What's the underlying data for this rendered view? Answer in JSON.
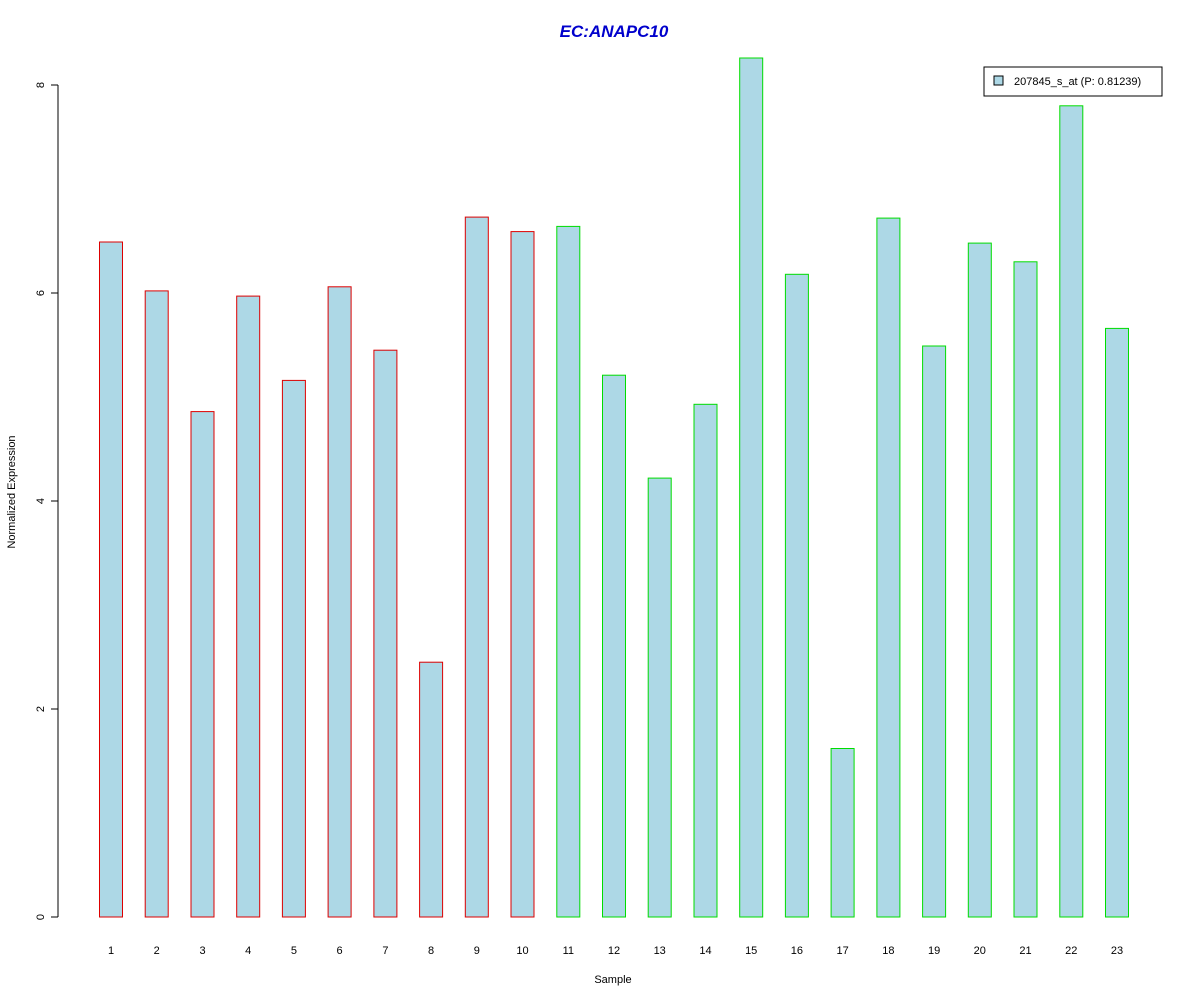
{
  "chart_data": {
    "type": "bar",
    "title": "EC:ANAPC10",
    "xlabel": "Sample",
    "ylabel": "Normalized Expression",
    "categories": [
      "1",
      "2",
      "3",
      "4",
      "5",
      "6",
      "7",
      "8",
      "9",
      "10",
      "11",
      "12",
      "13",
      "14",
      "15",
      "16",
      "17",
      "18",
      "19",
      "20",
      "21",
      "22",
      "23"
    ],
    "series": [
      {
        "name": "207845_s_at (P: 0.81239)",
        "values": [
          6.49,
          6.02,
          4.86,
          5.97,
          5.16,
          6.06,
          5.45,
          2.45,
          6.73,
          6.59,
          6.64,
          5.21,
          4.22,
          4.93,
          8.26,
          6.18,
          1.62,
          6.72,
          5.49,
          6.48,
          6.3,
          7.8,
          5.66
        ],
        "group_colors": [
          "#dd0000",
          "#dd0000",
          "#dd0000",
          "#dd0000",
          "#dd0000",
          "#dd0000",
          "#dd0000",
          "#dd0000",
          "#dd0000",
          "#dd0000",
          "#00dd00",
          "#00dd00",
          "#00dd00",
          "#00dd00",
          "#00dd00",
          "#00dd00",
          "#00dd00",
          "#00dd00",
          "#00dd00",
          "#00dd00",
          "#00dd00",
          "#00dd00",
          "#00dd00"
        ]
      }
    ],
    "ylim": [
      0,
      8.3
    ],
    "yticks": [
      0,
      2,
      4,
      6,
      8
    ],
    "grid": false,
    "legend_position": "top-right",
    "colors": {
      "bar_fill": "#add8e6",
      "title": "#0000cc",
      "axis": "#000000"
    }
  }
}
